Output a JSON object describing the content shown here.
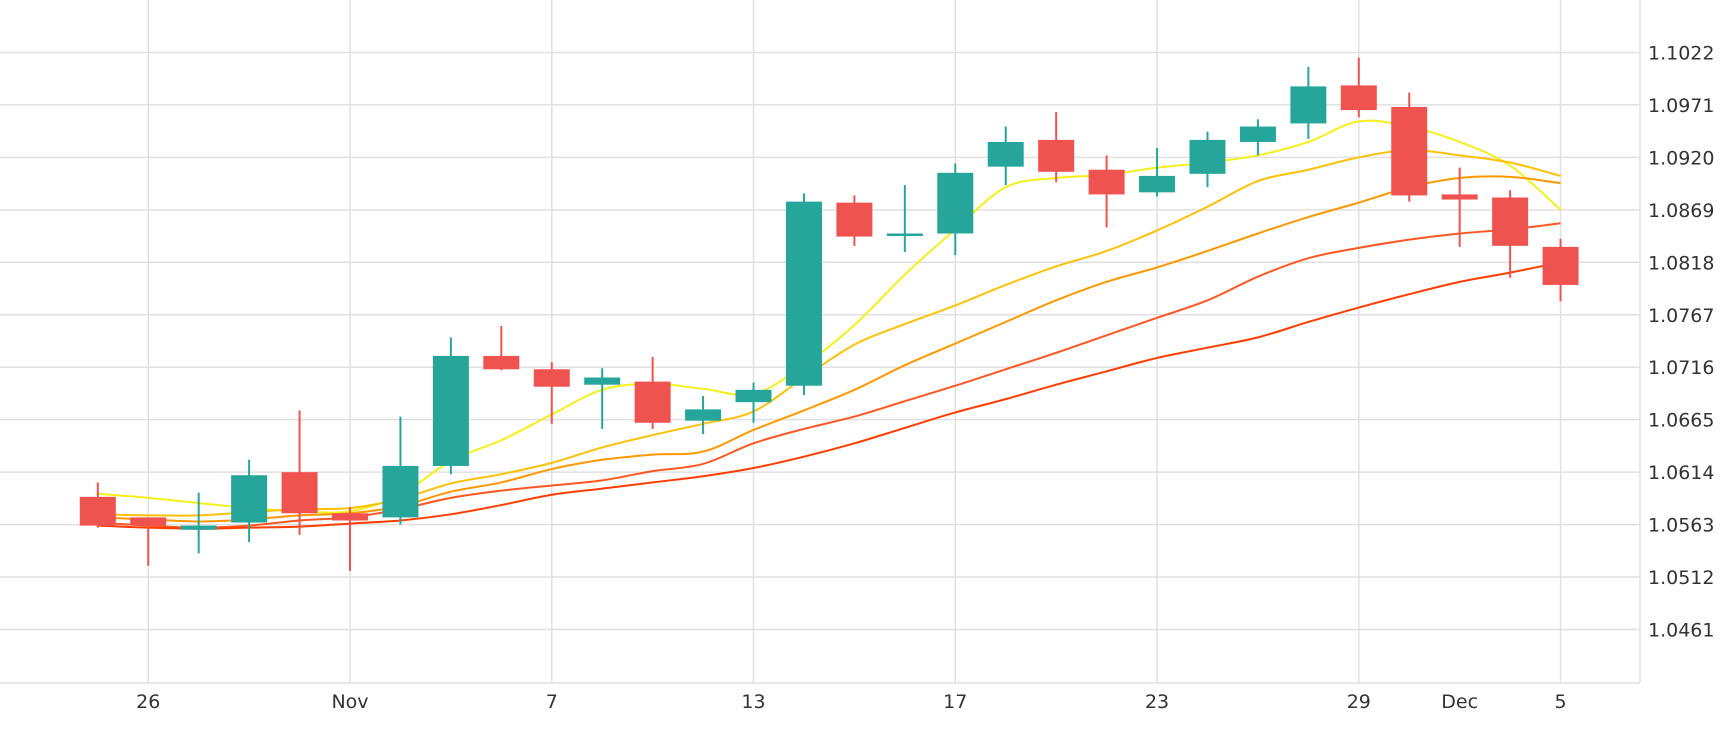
{
  "chart_data": {
    "type": "candlestick",
    "title": "",
    "xlabel": "",
    "ylabel": "",
    "x_ticks": [
      {
        "label": "26",
        "index": 1
      },
      {
        "label": "Nov",
        "index": 5
      },
      {
        "label": "7",
        "index": 9
      },
      {
        "label": "13",
        "index": 13
      },
      {
        "label": "17",
        "index": 17
      },
      {
        "label": "23",
        "index": 21
      },
      {
        "label": "29",
        "index": 25
      },
      {
        "label": "Dec",
        "index": 27
      },
      {
        "label": "5",
        "index": 29
      }
    ],
    "y_ticks": [
      "1.1022",
      "1.0971",
      "1.0920",
      "1.0869",
      "1.0818",
      "1.0767",
      "1.0716",
      "1.0665",
      "1.0614",
      "1.0563",
      "1.0512",
      "1.0461"
    ],
    "ylim": [
      1.0409,
      1.1073
    ],
    "grid": true,
    "colors": {
      "up": "#26a69a",
      "down": "#ef5350",
      "grid": "#e0e0e0",
      "axis_text": "#333333"
    },
    "candles": [
      {
        "open": 1.059,
        "high": 1.0604,
        "low": 1.056,
        "close": 1.0562
      },
      {
        "open": 1.057,
        "high": 1.057,
        "low": 1.0523,
        "close": 1.0562
      },
      {
        "open": 1.0558,
        "high": 1.0594,
        "low": 1.0535,
        "close": 1.0562
      },
      {
        "open": 1.0565,
        "high": 1.0626,
        "low": 1.0546,
        "close": 1.0611
      },
      {
        "open": 1.0614,
        "high": 1.0674,
        "low": 1.0553,
        "close": 1.0574
      },
      {
        "open": 1.0574,
        "high": 1.058,
        "low": 1.0518,
        "close": 1.0567
      },
      {
        "open": 1.057,
        "high": 1.0668,
        "low": 1.0563,
        "close": 1.062
      },
      {
        "open": 1.062,
        "high": 1.0745,
        "low": 1.0612,
        "close": 1.0727
      },
      {
        "open": 1.0727,
        "high": 1.0756,
        "low": 1.0713,
        "close": 1.0714
      },
      {
        "open": 1.0714,
        "high": 1.0721,
        "low": 1.0661,
        "close": 1.0697
      },
      {
        "open": 1.0699,
        "high": 1.0715,
        "low": 1.0656,
        "close": 1.0706
      },
      {
        "open": 1.0702,
        "high": 1.0726,
        "low": 1.0656,
        "close": 1.0662
      },
      {
        "open": 1.0664,
        "high": 1.0688,
        "low": 1.0651,
        "close": 1.0675
      },
      {
        "open": 1.0682,
        "high": 1.0701,
        "low": 1.0662,
        "close": 1.0694
      },
      {
        "open": 1.0698,
        "high": 1.0885,
        "low": 1.0689,
        "close": 1.0877
      },
      {
        "open": 1.0876,
        "high": 1.0883,
        "low": 1.0834,
        "close": 1.0843
      },
      {
        "open": 1.0844,
        "high": 1.0893,
        "low": 1.0828,
        "close": 1.0846
      },
      {
        "open": 1.0846,
        "high": 1.0914,
        "low": 1.0825,
        "close": 1.0905
      },
      {
        "open": 1.0911,
        "high": 1.095,
        "low": 1.0893,
        "close": 1.0935
      },
      {
        "open": 1.0937,
        "high": 1.0964,
        "low": 1.0896,
        "close": 1.0906
      },
      {
        "open": 1.0908,
        "high": 1.0922,
        "low": 1.0852,
        "close": 1.0884
      },
      {
        "open": 1.0886,
        "high": 1.0929,
        "low": 1.0882,
        "close": 1.0902
      },
      {
        "open": 1.0904,
        "high": 1.0945,
        "low": 1.0891,
        "close": 1.0937
      },
      {
        "open": 1.0935,
        "high": 1.0957,
        "low": 1.0922,
        "close": 1.095
      },
      {
        "open": 1.0953,
        "high": 1.1008,
        "low": 1.0938,
        "close": 1.0989
      },
      {
        "open": 1.099,
        "high": 1.1017,
        "low": 1.0959,
        "close": 1.0966
      },
      {
        "open": 1.0969,
        "high": 1.0983,
        "low": 1.0877,
        "close": 1.0883
      },
      {
        "open": 1.0884,
        "high": 1.091,
        "low": 1.0833,
        "close": 1.0879
      },
      {
        "open": 1.0881,
        "high": 1.0888,
        "low": 1.0803,
        "close": 1.0834
      },
      {
        "open": 1.0833,
        "high": 1.0841,
        "low": 1.078,
        "close": 1.0796
      }
    ],
    "series": [
      {
        "color": "#f5f01a",
        "values": [
          1.0593,
          1.0589,
          1.0584,
          1.0579,
          1.0576,
          1.0576,
          1.0592,
          1.0625,
          1.0645,
          1.067,
          1.0694,
          1.07,
          1.0695,
          1.069,
          1.0718,
          1.0757,
          1.0806,
          1.085,
          1.0891,
          1.09,
          1.0903,
          1.091,
          1.0915,
          1.0922,
          1.0935,
          1.0955,
          1.095,
          1.0935,
          1.0912,
          1.0869
        ]
      },
      {
        "color": "#ffc107",
        "values": [
          1.0573,
          1.0572,
          1.0572,
          1.0575,
          1.0578,
          1.0579,
          1.0588,
          1.0603,
          1.0612,
          1.0623,
          1.0638,
          1.065,
          1.0661,
          1.0673,
          1.0706,
          1.0738,
          1.0758,
          1.0776,
          1.0796,
          1.0814,
          1.0829,
          1.0849,
          1.0872,
          1.0897,
          1.0908,
          1.092,
          1.0927,
          1.0922,
          1.0915,
          1.0902
        ]
      },
      {
        "color": "#ff9800",
        "values": [
          1.057,
          1.0568,
          1.0566,
          1.0568,
          1.0572,
          1.0574,
          1.0581,
          1.0595,
          1.0604,
          1.0617,
          1.0626,
          1.0631,
          1.0634,
          1.0655,
          1.0674,
          1.0694,
          1.0718,
          1.0739,
          1.076,
          1.0781,
          1.0799,
          1.0813,
          1.0829,
          1.0846,
          1.0862,
          1.0876,
          1.0891,
          1.09,
          1.0901,
          1.0895
        ]
      },
      {
        "color": "#ff5722",
        "values": [
          1.0565,
          1.0562,
          1.056,
          1.0562,
          1.0567,
          1.057,
          1.0578,
          1.0589,
          1.0596,
          1.0601,
          1.0606,
          1.0615,
          1.0622,
          1.0642,
          1.0656,
          1.0668,
          1.0683,
          1.0698,
          1.0714,
          1.073,
          1.0747,
          1.0764,
          1.0781,
          1.0804,
          1.0822,
          1.0832,
          1.084,
          1.0846,
          1.085,
          1.0856
        ]
      },
      {
        "color": "#ff3d00",
        "values": [
          1.0562,
          1.056,
          1.0559,
          1.056,
          1.0561,
          1.0564,
          1.0567,
          1.0573,
          1.0582,
          1.0592,
          1.0598,
          1.0604,
          1.061,
          1.0618,
          1.0629,
          1.0642,
          1.0657,
          1.0672,
          1.0685,
          1.0699,
          1.0712,
          1.0725,
          1.0735,
          1.0745,
          1.076,
          1.0774,
          1.0787,
          1.0799,
          1.0808,
          1.0818
        ]
      }
    ]
  }
}
